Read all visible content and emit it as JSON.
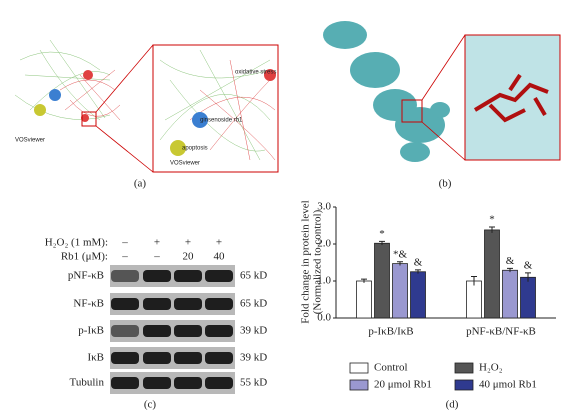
{
  "panels": {
    "a": {
      "label": "(a)",
      "nodes": [
        "oxidative stress",
        "ginsenoside rb1",
        "apoptosis",
        "VOSviewer"
      ]
    },
    "b": {
      "label": "(b)"
    },
    "c": {
      "label": "(c)",
      "h2o2_label": "H₂O₂ (1 mM):",
      "h2o2": [
        "–",
        "+",
        "+",
        "+"
      ],
      "rb1_label": "Rb1 (μM):",
      "rb1": [
        "–",
        "–",
        "20",
        "40"
      ],
      "rows": [
        {
          "label": "pNF-κB",
          "size": "65 kD"
        },
        {
          "label": "NF-κB",
          "size": "65 kD"
        },
        {
          "label": "p-IκB",
          "size": "39 kD"
        },
        {
          "label": "IκB",
          "size": "39 kD"
        },
        {
          "label": "Tubulin",
          "size": "55 kD"
        }
      ]
    },
    "d": {
      "label": "(d)"
    }
  },
  "chart_data": {
    "type": "bar",
    "y_label": [
      "Fold change in protein level",
      "(Normalized to control)"
    ],
    "categories": [
      "p-IκB/IκB",
      "pNF-κB/NF-κB"
    ],
    "series": [
      {
        "name": "Control",
        "color": "#ffffff",
        "values": [
          1.0,
          1.0
        ],
        "errors": [
          0.05,
          0.12
        ]
      },
      {
        "name": "H₂O₂",
        "color": "#555555",
        "values": [
          2.02,
          2.38
        ],
        "errors": [
          0.05,
          0.08
        ],
        "annotations": [
          "*",
          "*"
        ]
      },
      {
        "name": "20 μmol Rb1",
        "color": "#9a98d0",
        "values": [
          1.47,
          1.29
        ],
        "errors": [
          0.05,
          0.05
        ],
        "annotations": [
          "*&",
          "&"
        ]
      },
      {
        "name": "40 μmol Rb1",
        "color": "#2f3a8f",
        "values": [
          1.25,
          1.1
        ],
        "errors": [
          0.05,
          0.12
        ],
        "annotations": [
          "&",
          "&"
        ]
      }
    ],
    "ylim": [
      0,
      3
    ],
    "yticks": [
      {
        "value": 0,
        "label": "0.0"
      },
      {
        "value": 1,
        "label": "1.0"
      },
      {
        "value": 2,
        "label": "2.0"
      },
      {
        "value": 3,
        "label": "3.0"
      }
    ]
  }
}
